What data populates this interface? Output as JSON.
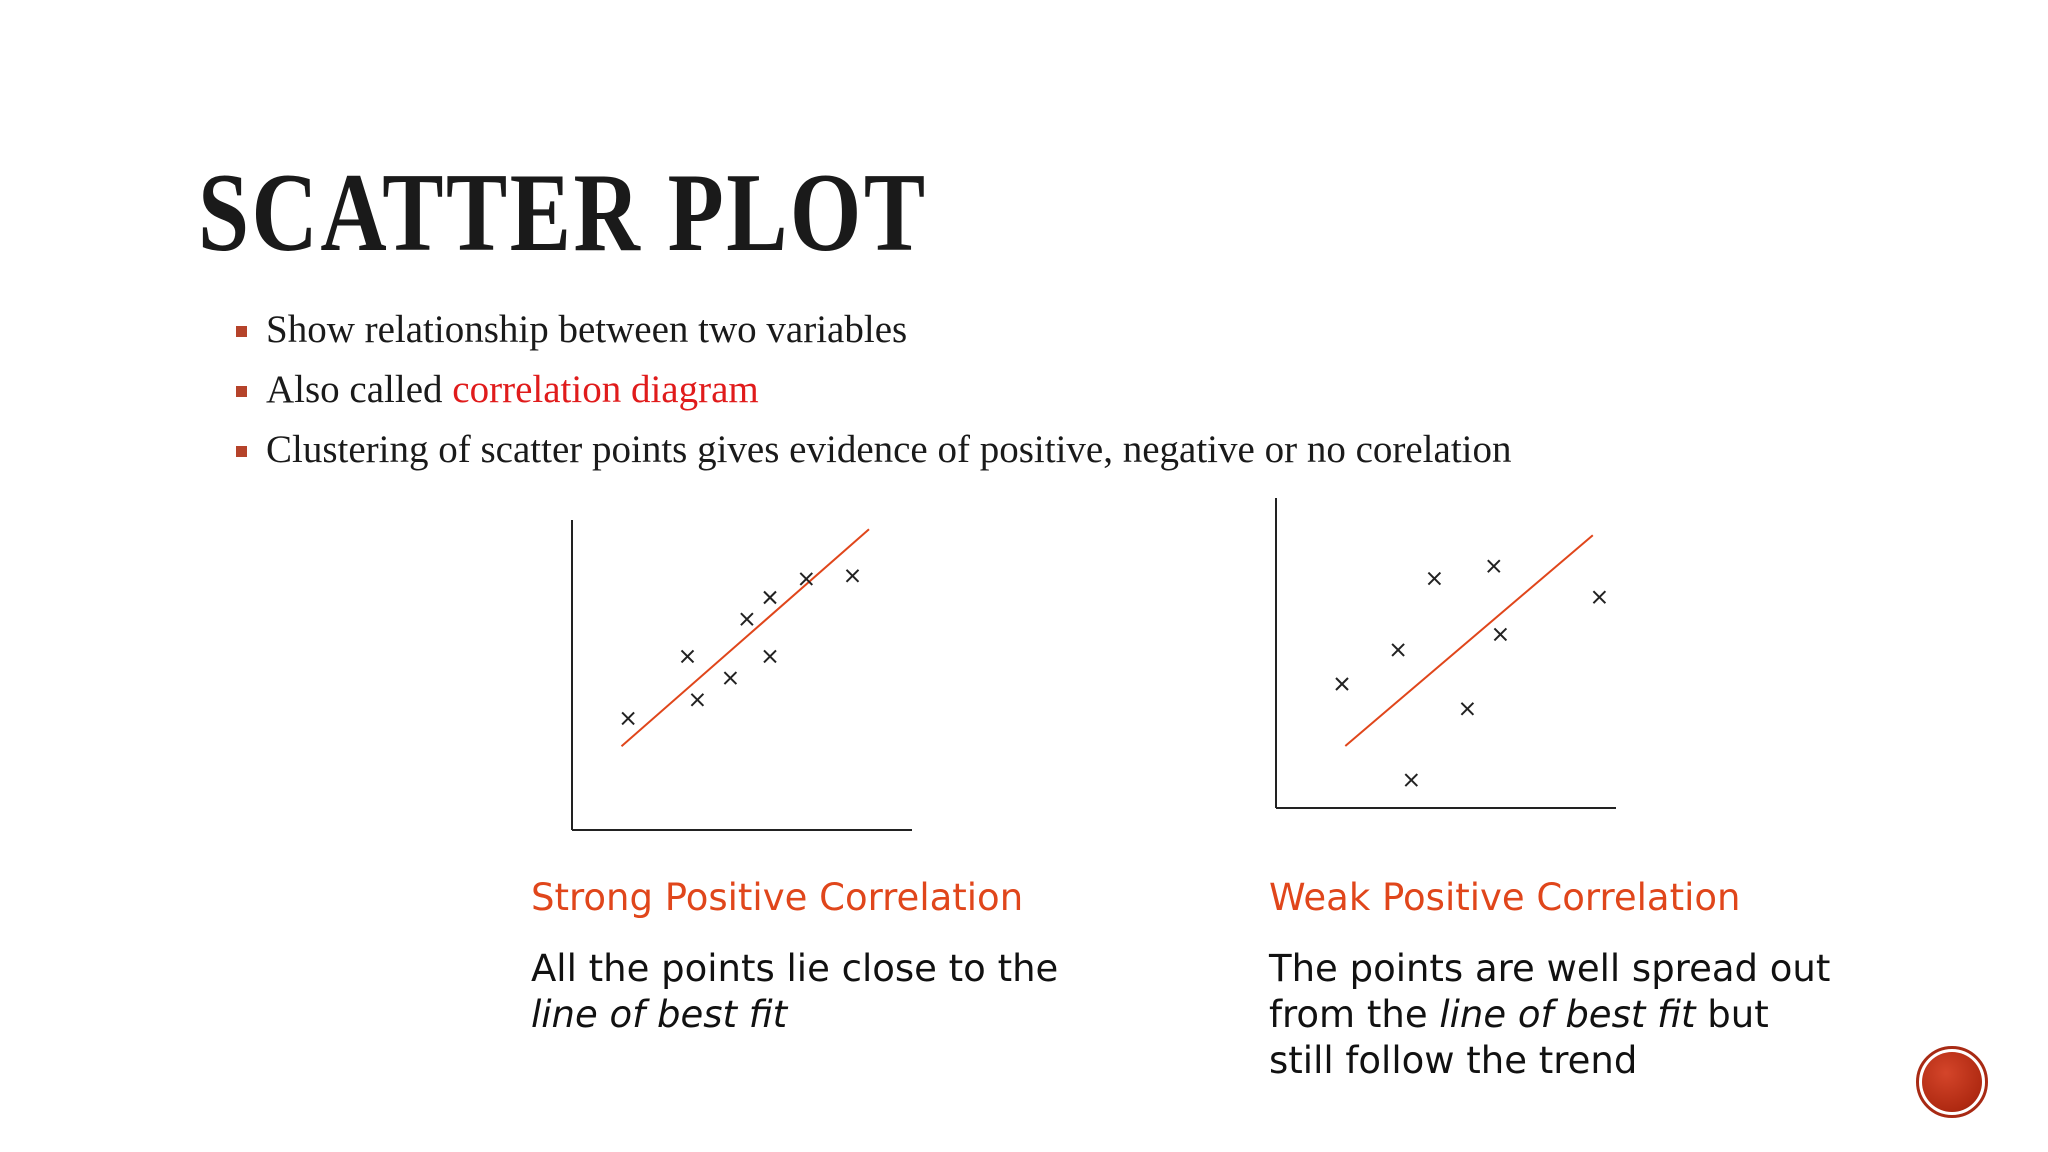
{
  "slide": {
    "title": "SCATTER PLOT",
    "bullets": [
      {
        "text": "Show relationship between two variables",
        "highlight": ""
      },
      {
        "text": "Also called ",
        "highlight": "correlation diagram"
      },
      {
        "text": "Clustering of  scatter points gives evidence of positive, negative or no corelation",
        "highlight": ""
      }
    ]
  },
  "colors": {
    "accent": "#b5432a",
    "highlight": "#e01b1b",
    "fit_line": "#e0461b",
    "caption": "#e0461b"
  },
  "chart_data": [
    {
      "type": "scatter",
      "title": "Strong Positive Correlation",
      "description_parts": [
        "All the points lie close to the",
        "line of best fit"
      ],
      "xlim": [
        0,
        10
      ],
      "ylim": [
        0,
        10
      ],
      "marker": "x",
      "points": [
        [
          1.7,
          3.6
        ],
        [
          3.5,
          5.6
        ],
        [
          3.8,
          4.2
        ],
        [
          4.8,
          4.9
        ],
        [
          5.3,
          6.8
        ],
        [
          6.0,
          7.5
        ],
        [
          6.0,
          5.6
        ],
        [
          7.1,
          8.1
        ],
        [
          8.5,
          8.2
        ]
      ],
      "best_fit": {
        "x1": 1.5,
        "y1": 2.7,
        "x2": 9.0,
        "y2": 9.7
      }
    },
    {
      "type": "scatter",
      "title": "Weak Positive Correlation",
      "description_parts": [
        "The points are well spread out",
        "from the ",
        "line of best fit",
        " but",
        "still follow the trend"
      ],
      "xlim": [
        0,
        10
      ],
      "ylim": [
        0,
        10
      ],
      "marker": "x",
      "points": [
        [
          2.0,
          4.0
        ],
        [
          3.7,
          5.1
        ],
        [
          4.1,
          0.9
        ],
        [
          4.8,
          7.4
        ],
        [
          5.8,
          3.2
        ],
        [
          6.6,
          7.8
        ],
        [
          6.8,
          5.6
        ],
        [
          9.8,
          6.8
        ]
      ],
      "best_fit": {
        "x1": 2.1,
        "y1": 2.0,
        "x2": 9.6,
        "y2": 8.8
      }
    }
  ]
}
